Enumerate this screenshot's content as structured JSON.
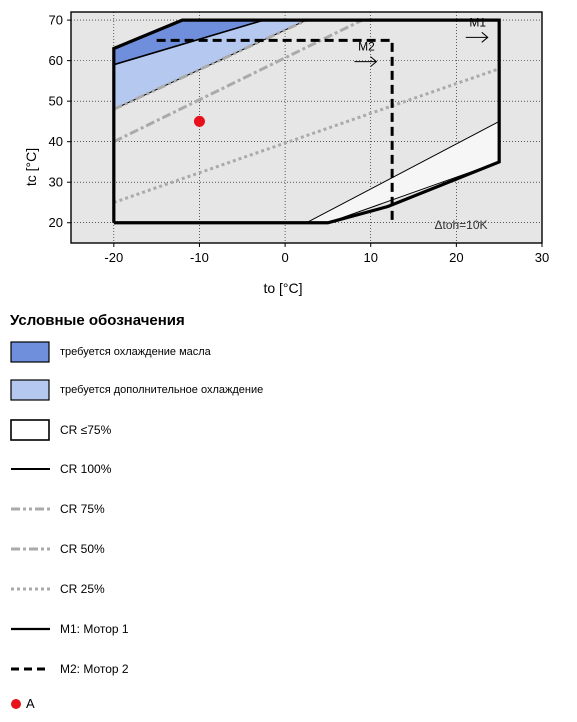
{
  "chart_data": {
    "type": "line",
    "xlabel": "to [°C]",
    "ylabel": "tc [°C]",
    "xlim": [
      -25,
      30
    ],
    "ylim": [
      15,
      72
    ],
    "x_ticks": [
      -20,
      -10,
      0,
      10,
      20,
      30
    ],
    "y_ticks": [
      20,
      30,
      40,
      50,
      60,
      70
    ],
    "grid": true,
    "annotation": "Δtoh=10K",
    "regions": [
      {
        "name": "требуется охлаждение масла",
        "color": "#6f8fdc",
        "points": [
          [
            -20,
            63
          ],
          [
            -12,
            70
          ],
          [
            -2.5,
            70
          ],
          [
            -20,
            59
          ]
        ]
      },
      {
        "name": "требуется дополнительное охлаждение",
        "color": "#b5c9f0",
        "points": [
          [
            -20,
            59
          ],
          [
            -2.5,
            70
          ],
          [
            2.5,
            70
          ],
          [
            -20,
            48
          ]
        ]
      },
      {
        "name": "CR ≤75%",
        "color": "#f6f6f6",
        "points": [
          [
            2.5,
            20
          ],
          [
            25,
            45
          ],
          [
            25,
            35
          ],
          [
            5,
            20
          ]
        ]
      }
    ],
    "series": [
      {
        "name": "M1: Мотор 1",
        "style": "solid",
        "points": [
          [
            -20,
            20
          ],
          [
            -20,
            63
          ],
          [
            -12,
            70
          ],
          [
            25,
            70
          ],
          [
            25,
            35
          ],
          [
            12,
            24
          ],
          [
            5,
            20
          ],
          [
            -20,
            20
          ]
        ]
      },
      {
        "name": "M2: Мотор 2",
        "style": "dashed",
        "points": [
          [
            -15,
            65
          ],
          [
            12.5,
            65
          ],
          [
            12.5,
            20
          ]
        ]
      },
      {
        "name": "CR 100%",
        "style": "solid-thin",
        "points": [
          [
            -20,
            59
          ],
          [
            -2.5,
            70
          ]
        ]
      },
      {
        "name": "CR 75%",
        "style": "dashdotdot",
        "points": [
          [
            -20,
            48
          ],
          [
            2.5,
            70
          ]
        ]
      },
      {
        "name": "CR 50%",
        "style": "dashdot",
        "points": [
          [
            -20,
            40
          ],
          [
            9,
            70
          ]
        ]
      },
      {
        "name": "CR 25%",
        "style": "dotted",
        "points": [
          [
            -20,
            25
          ],
          [
            25,
            58
          ]
        ]
      }
    ],
    "points": [
      {
        "name": "A",
        "x": -10,
        "y": 45,
        "color": "#e8101a"
      }
    ],
    "motor_labels": [
      {
        "label": "M1",
        "x": 22.5,
        "y": 66
      },
      {
        "label": "M2",
        "x": 9.5,
        "y": 60
      }
    ]
  },
  "legend": {
    "title": "Условные обозначения",
    "items": [
      {
        "label": "требуется охлаждение масла"
      },
      {
        "label": "требуется дополнительное охлаждение"
      },
      {
        "label": "CR ≤75%"
      },
      {
        "label": "CR 100%"
      },
      {
        "label": "CR 75%"
      },
      {
        "label": "CR 50%"
      },
      {
        "label": "CR 25%"
      },
      {
        "label": "M1: Мотор 1"
      },
      {
        "label": "M2: Мотор 2"
      },
      {
        "label": "A"
      }
    ]
  },
  "colors": {
    "plot_bg": "#e6e6e6",
    "grid": "#000000",
    "oil_cooling": "#6f8fdc",
    "extra_cooling": "#b5c9f0",
    "cr_le_75": "#f6f6f6",
    "cr_gray": "#aaaaaa",
    "point_a": "#e8101a"
  }
}
